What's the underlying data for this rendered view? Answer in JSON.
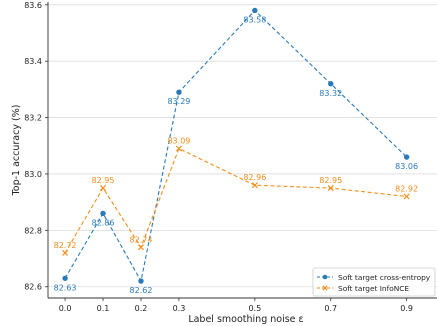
{
  "chart_data": {
    "type": "line",
    "xlabel": "Label smoothing noise ε",
    "ylabel": "Top-1 accuracy (%)",
    "x": [
      0.0,
      0.1,
      0.2,
      0.3,
      0.5,
      0.7,
      0.9
    ],
    "xticks": [
      "0.0",
      "0.1",
      "0.2",
      "0.3",
      "0.5",
      "0.7",
      "0.9"
    ],
    "yticks": [
      "82.6",
      "82.8",
      "83.0",
      "83.2",
      "83.4",
      "83.6"
    ],
    "ylim": [
      82.56,
      83.61
    ],
    "grid": "horizontal",
    "legend_position": "bottom-right",
    "series": [
      {
        "name": "Soft target cross-entropy",
        "color": "#2a7ab9",
        "marker": "circle",
        "linestyle": "dashed",
        "values": [
          82.63,
          82.86,
          82.62,
          83.29,
          83.58,
          83.32,
          83.06
        ],
        "labels": [
          "82.63",
          "82.86",
          "82.62",
          "83.29",
          "83.58",
          "83.32",
          "83.06"
        ]
      },
      {
        "name": "Soft target InfoNCE",
        "color": "#f28e1c",
        "marker": "x",
        "linestyle": "dashed",
        "values": [
          82.72,
          82.95,
          82.74,
          83.09,
          82.96,
          82.95,
          82.92
        ],
        "labels": [
          "82.72",
          "82.95",
          "82.74",
          "83.09",
          "82.96",
          "82.95",
          "82.92"
        ]
      }
    ]
  }
}
